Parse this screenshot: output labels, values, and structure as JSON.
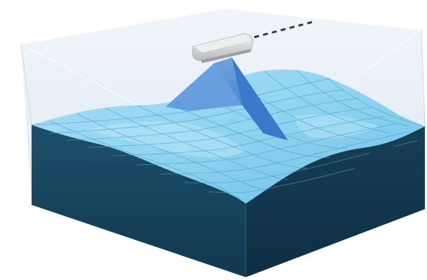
{
  "diagram": {
    "subject": "",
    "colors": {
      "background": "#ffffff",
      "water_volume": "#dfe9f3",
      "water_edge": "#bcd0e3",
      "seabed_top": "#8fd3f1",
      "seabed_top_light": "#aee1f6",
      "seabed_grid": "#5aa9d0",
      "seabed_side_dark": "#123a52",
      "seabed_side_mid": "#1d4f6c",
      "sonar_beam": "#3d7fd0",
      "vessel_hull": "#cfd1d3",
      "vessel_deck": "#eceded",
      "towline": "#3a3a3a"
    },
    "icons": [
      "survey-vessel-icon",
      "sonar-beam-icon"
    ]
  }
}
